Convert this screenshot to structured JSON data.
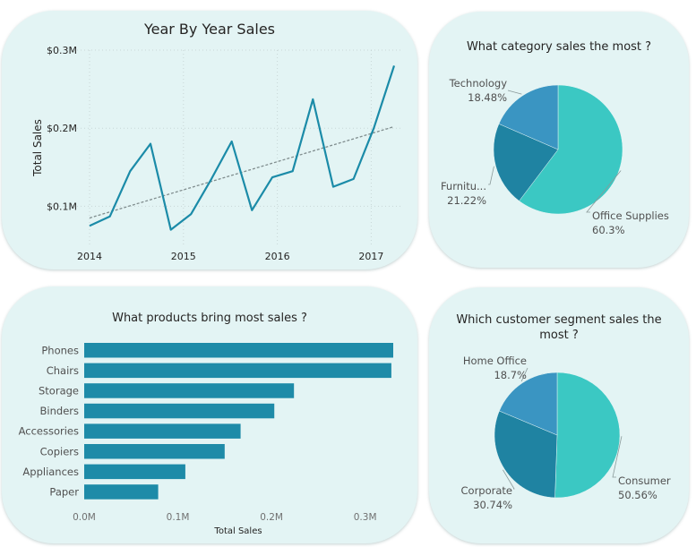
{
  "chart_data": [
    {
      "type": "line",
      "title": "Year By Year Sales",
      "xlabel": "",
      "ylabel": "Total Sales",
      "x_ticks": [
        "2014",
        "2015",
        "2016",
        "2017"
      ],
      "y_ticks": [
        "$0.1M",
        "$0.2M",
        "$0.3M"
      ],
      "ylim": [
        0.05,
        0.3
      ],
      "grid": true,
      "series": [
        {
          "x": [
            2014.0,
            2014.25,
            2014.5,
            2014.75,
            2015.0,
            2015.25,
            2015.5,
            2015.75,
            2016.0,
            2016.25,
            2016.5,
            2016.75,
            2017.0,
            2017.25,
            2017.5,
            2017.75
          ],
          "values": [
            0.075,
            0.087,
            0.145,
            0.18,
            0.07,
            0.09,
            0.135,
            0.183,
            0.095,
            0.137,
            0.145,
            0.237,
            0.125,
            0.135,
            0.2,
            0.28
          ]
        }
      ],
      "trendline": {
        "x": [
          2014.0,
          2017.75
        ],
        "values": [
          0.085,
          0.202
        ]
      },
      "line_color": "#1b8ba8",
      "trend_color": "#7f8c8d"
    },
    {
      "type": "pie",
      "title": "What category sales the most ?",
      "slices": [
        {
          "label": "Office Supplies",
          "percent": "60.3%",
          "value": 60.3,
          "color": "#3bc8c3"
        },
        {
          "label": "Furnitu...",
          "percent": "21.22%",
          "value": 21.22,
          "color": "#1f83a2"
        },
        {
          "label": "Technology",
          "percent": "18.48%",
          "value": 18.48,
          "color": "#3a95c2"
        }
      ]
    },
    {
      "type": "bar",
      "orientation": "horizontal",
      "title": "What products bring most sales ?",
      "xlabel": "Total Sales",
      "ylabel": "",
      "x_ticks": [
        "0.0M",
        "0.1M",
        "0.2M",
        "0.3M"
      ],
      "xlim": [
        0,
        0.33
      ],
      "categories": [
        "Phones",
        "Chairs",
        "Storage",
        "Binders",
        "Accessories",
        "Copiers",
        "Appliances",
        "Paper"
      ],
      "values": [
        0.33,
        0.328,
        0.224,
        0.203,
        0.167,
        0.15,
        0.108,
        0.079
      ],
      "color": "#1e8ba8"
    },
    {
      "type": "pie",
      "title": "Which customer segment sales the most ?",
      "slices": [
        {
          "label": "Consumer",
          "percent": "50.56%",
          "value": 50.56,
          "color": "#3bc8c3"
        },
        {
          "label": "Corporate",
          "percent": "30.74%",
          "value": 30.74,
          "color": "#1f83a2"
        },
        {
          "label": "Home Office",
          "percent": "18.7%",
          "value": 18.7,
          "color": "#3a95c2"
        }
      ]
    }
  ]
}
